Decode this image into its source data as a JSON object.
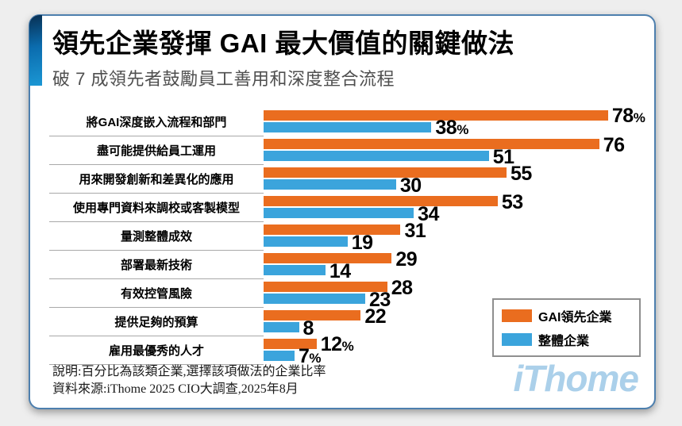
{
  "header": {
    "title": "領先企業發揮 GAI 最大價值的關鍵做法",
    "subtitle": "破 7 成領先者鼓勵員工善用和深度整合流程"
  },
  "chart_data": {
    "type": "bar",
    "orientation": "horizontal",
    "title": "領先企業發揮 GAI 最大價值的關鍵做法",
    "xlim": [
      0,
      80
    ],
    "grid": false,
    "legend_position": "right-bottom",
    "categories": [
      "將GAI深度嵌入流程和部門",
      "盡可能提供給員工運用",
      "用來開發創新和差異化的應用",
      "使用專門資料來調校或客製模型",
      "量測整體成效",
      "部署最新技術",
      "有效控管風險",
      "提供足夠的預算",
      "雇用最優秀的人才"
    ],
    "series": [
      {
        "name": "GAI領先企業",
        "color": "#ea6d1f",
        "values": [
          78,
          76,
          55,
          53,
          31,
          29,
          28,
          22,
          12
        ],
        "labels": [
          "78%",
          "76",
          "55",
          "53",
          "31",
          "29",
          "28",
          "22",
          "12%"
        ]
      },
      {
        "name": "整體企業",
        "color": "#3ba4dc",
        "values": [
          38,
          51,
          30,
          34,
          19,
          14,
          23,
          8,
          7
        ],
        "labels": [
          "38%",
          "51",
          "30",
          "34",
          "19",
          "14",
          "23",
          "8",
          "7%"
        ]
      }
    ]
  },
  "legend": {
    "items": [
      {
        "label": "GAI領先企業",
        "color": "#ea6d1f"
      },
      {
        "label": "整體企業",
        "color": "#3ba4dc"
      }
    ]
  },
  "footer": {
    "note_line1": "說明:百分比為該類企業,選擇該項做法的企業比率",
    "note_line2": "資料來源:iThome 2025 CIO大調查,2025年8月",
    "logo": "iThome"
  },
  "colors": {
    "leader_bar": "#ea6d1f",
    "overall_bar": "#3ba4dc",
    "card_border": "#4d7fae",
    "accent_stripe_top": "#082f52",
    "accent_stripe_bottom": "#1b97d4",
    "logo_blue": "#abd0ea",
    "page_background": "#eeeeee"
  }
}
